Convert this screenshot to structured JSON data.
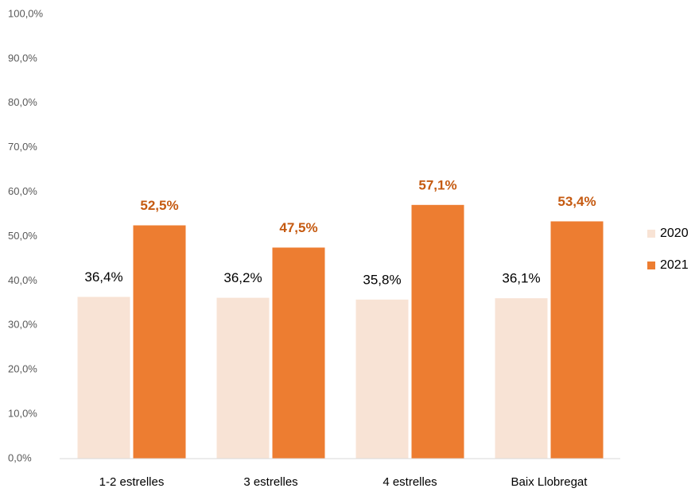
{
  "chart_data": {
    "type": "bar",
    "categories": [
      "1-2 estrelles",
      "3 estrelles",
      "4 estrelles",
      "Baix Llobregat"
    ],
    "series": [
      {
        "name": "2020",
        "color": "#f8e3d5",
        "values": [
          36.4,
          36.2,
          35.8,
          36.1
        ],
        "value_labels": [
          "36,4%",
          "36,2%",
          "35,8%",
          "36,1%"
        ]
      },
      {
        "name": "2021",
        "color": "#ed7d31",
        "values": [
          52.5,
          47.5,
          57.1,
          53.4
        ],
        "value_labels": [
          "52,5%",
          "47,5%",
          "57,1%",
          "53,4%"
        ]
      }
    ],
    "ylim": [
      0,
      100
    ],
    "yticks": [
      {
        "value": 0,
        "label": "0,0%"
      },
      {
        "value": 10,
        "label": "10,0%"
      },
      {
        "value": 20,
        "label": "20,0%"
      },
      {
        "value": 30,
        "label": "30,0%"
      },
      {
        "value": 40,
        "label": "40,0%"
      },
      {
        "value": 50,
        "label": "50,0%"
      },
      {
        "value": 60,
        "label": "60,0%"
      },
      {
        "value": 70,
        "label": "70,0%"
      },
      {
        "value": 80,
        "label": "80,0%"
      },
      {
        "value": 90,
        "label": "90,0%"
      },
      {
        "value": 100,
        "label": "100,0%"
      }
    ],
    "grid": false,
    "legend": "right"
  }
}
